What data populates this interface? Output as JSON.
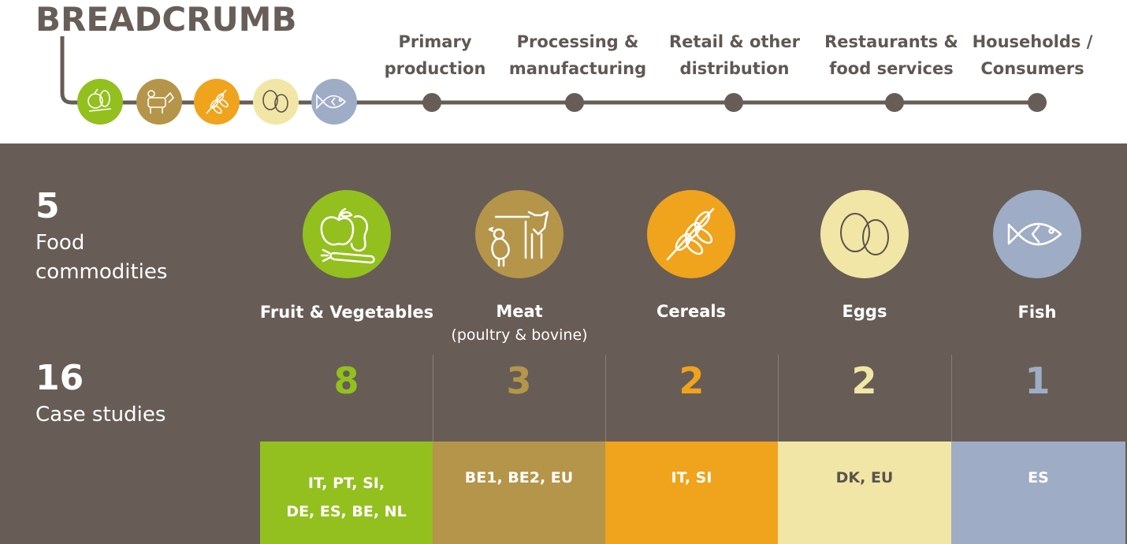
{
  "header": {
    "title": "BREADCRUMB",
    "stages": [
      {
        "label": "Primary\nproduction"
      },
      {
        "label": "Processing &\nmanufacturing"
      },
      {
        "label": "Retail & other\ndistribution"
      },
      {
        "label": "Restaurants &\nfood services"
      },
      {
        "label": "Households /\nConsumers"
      }
    ]
  },
  "summary": {
    "commodities_count": "5",
    "commodities_label": "Food\ncommodities",
    "case_studies_count": "16",
    "case_studies_label": "Case studies"
  },
  "commodities": [
    {
      "name": "Fruit & Vegetables",
      "sub": "",
      "count": "8",
      "countries": "IT, PT, SI,\nDE, ES, BE, NL",
      "color": "#93c01f",
      "icon": "fruit-vegetables-icon",
      "box_text_color": "#ffffff",
      "count_color": "#93c01f"
    },
    {
      "name": "Meat",
      "sub": "(poultry & bovine)",
      "count": "3",
      "countries": "BE1, BE2, EU",
      "color": "#b5954a",
      "icon": "meat-icon",
      "box_text_color": "#ffffff",
      "count_color": "#b5954a"
    },
    {
      "name": "Cereals",
      "sub": "",
      "count": "2",
      "countries": "IT, SI",
      "color": "#f0a31c",
      "icon": "cereals-icon",
      "box_text_color": "#ffffff",
      "count_color": "#f0a31c"
    },
    {
      "name": "Eggs",
      "sub": "",
      "count": "2",
      "countries": "DK, EU",
      "color": "#f2e6a6",
      "icon": "eggs-icon",
      "box_text_color": "#5b534d",
      "count_color": "#f2e6a6"
    },
    {
      "name": "Fish",
      "sub": "",
      "count": "1",
      "countries": "ES",
      "color": "#9facc6",
      "icon": "fish-icon",
      "box_text_color": "#ffffff",
      "count_color": "#9facc6"
    }
  ]
}
